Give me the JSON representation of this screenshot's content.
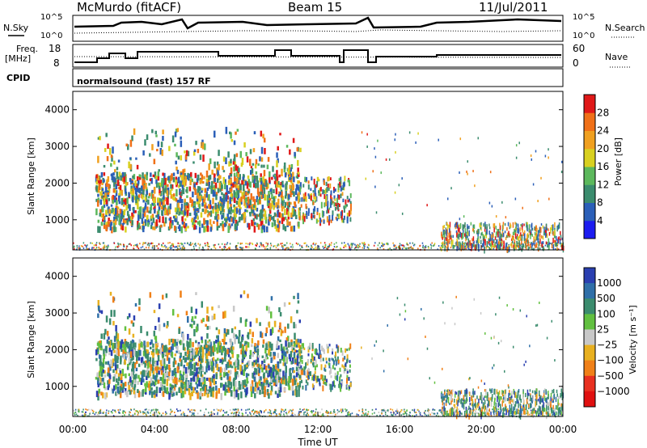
{
  "header": {
    "station": "McMurdo (fitACF)",
    "beam": "Beam 15",
    "date": "11/Jul/2011"
  },
  "top_panels": {
    "nsky_label": "N.Sky",
    "nsky_ticks": [
      "10^5",
      "10^0"
    ],
    "nsearch_label": "N.Search",
    "nsearch_ticks": [
      "10^5",
      "10^0"
    ],
    "freq_label_1": "Freq.",
    "freq_label_2": "[MHz]",
    "freq_ticks": [
      "18",
      "8"
    ],
    "nave_label": "Nave",
    "nave_ticks": [
      "60",
      "0"
    ],
    "cpid_label": "CPID",
    "cpid_text": "normalsound (fast) 157 RF"
  },
  "chart_data": [
    {
      "type": "heatmap",
      "title": "",
      "xlabel": "",
      "ylabel": "Slant Range [km]",
      "xlim": [
        0,
        24
      ],
      "ylim": [
        180,
        4500
      ],
      "yticks": [
        "1000",
        "2000",
        "3000",
        "4000"
      ],
      "colorbar": {
        "label": "Power [dB]",
        "ticks": [
          "4",
          "8",
          "12",
          "16",
          "20",
          "24",
          "28"
        ],
        "range": [
          0,
          30
        ],
        "colors": [
          "#1c1cf0",
          "#2b5fb8",
          "#3b8c6e",
          "#5cb85c",
          "#d8d020",
          "#f0a020",
          "#f07018",
          "#e01818"
        ]
      }
    },
    {
      "type": "heatmap",
      "title": "",
      "xlabel": "Time UT",
      "ylabel": "Slant Range [km]",
      "xlim": [
        0,
        24
      ],
      "ylim": [
        180,
        4500
      ],
      "xticks": [
        "00:00",
        "04:00",
        "08:00",
        "12:00",
        "16:00",
        "20:00",
        "00:00"
      ],
      "yticks": [
        "1000",
        "2000",
        "3000",
        "4000"
      ],
      "colorbar": {
        "label": "Velocity [m s⁻¹]",
        "ticks": [
          "1000",
          "500",
          "100",
          "25",
          "−25",
          "−100",
          "−500",
          "−1000"
        ],
        "colors": [
          "#2a3fb0",
          "#2f6fa8",
          "#3b8c6e",
          "#62c040",
          "#c8c8c8",
          "#e8b020",
          "#f08018",
          "#e83020",
          "#e01010"
        ]
      }
    }
  ]
}
